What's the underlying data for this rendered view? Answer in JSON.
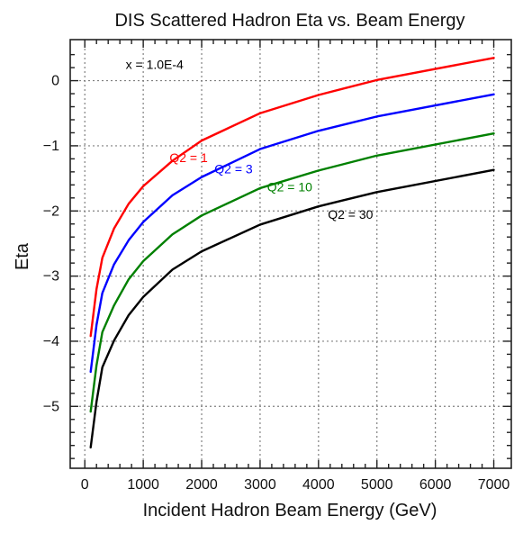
{
  "chart_data": {
    "type": "line",
    "title": "DIS Scattered Hadron Eta vs. Beam Energy",
    "xlabel": "Incident Hadron Beam Energy (GeV)",
    "ylabel": "Eta",
    "xlim": [
      -250,
      7300
    ],
    "ylim": [
      -5.95,
      0.63
    ],
    "xticks": [
      0,
      1000,
      2000,
      3000,
      4000,
      5000,
      6000,
      7000
    ],
    "yticks": [
      0,
      -1,
      -2,
      -3,
      -4,
      -5
    ],
    "grid": true,
    "legend": "none",
    "annotations": [
      {
        "text": "x = 1.0E-4",
        "x": 700,
        "y": 0.18,
        "color": "#000000"
      },
      {
        "text": "Q2 = 1",
        "x": 1450,
        "y": -1.25,
        "color": "#ff0000"
      },
      {
        "text": "Q2 = 3",
        "x": 2220,
        "y": -1.42,
        "color": "#0000ff"
      },
      {
        "text": "Q2 = 10",
        "x": 3120,
        "y": -1.7,
        "color": "#008000"
      },
      {
        "text": "Q2 = 30",
        "x": 4160,
        "y": -2.12,
        "color": "#000000"
      }
    ],
    "series": [
      {
        "name": "Q2 = 1",
        "color": "#ff0000",
        "x": [
          100,
          200,
          300,
          500,
          750,
          1000,
          1500,
          2000,
          3000,
          4000,
          5000,
          7000
        ],
        "y": [
          -3.92,
          -3.2,
          -2.72,
          -2.27,
          -1.89,
          -1.62,
          -1.23,
          -0.92,
          -0.5,
          -0.22,
          0.01,
          0.35
        ]
      },
      {
        "name": "Q2 = 3",
        "color": "#0000ff",
        "x": [
          100,
          200,
          300,
          500,
          750,
          1000,
          1500,
          2000,
          3000,
          4000,
          5000,
          7000
        ],
        "y": [
          -4.47,
          -3.75,
          -3.26,
          -2.82,
          -2.45,
          -2.17,
          -1.76,
          -1.48,
          -1.05,
          -0.77,
          -0.55,
          -0.21
        ]
      },
      {
        "name": "Q2 = 10",
        "color": "#008000",
        "x": [
          100,
          200,
          300,
          500,
          750,
          1000,
          1500,
          2000,
          3000,
          4000,
          5000,
          7000
        ],
        "y": [
          -5.08,
          -4.37,
          -3.86,
          -3.45,
          -3.05,
          -2.77,
          -2.36,
          -2.07,
          -1.65,
          -1.38,
          -1.15,
          -0.81
        ]
      },
      {
        "name": "Q2 = 30",
        "color": "#000000",
        "x": [
          100,
          200,
          300,
          500,
          750,
          1000,
          1500,
          2000,
          3000,
          4000,
          5000,
          7000
        ],
        "y": [
          -5.63,
          -4.93,
          -4.4,
          -3.99,
          -3.6,
          -3.32,
          -2.9,
          -2.62,
          -2.21,
          -1.93,
          -1.71,
          -1.37
        ]
      }
    ]
  }
}
